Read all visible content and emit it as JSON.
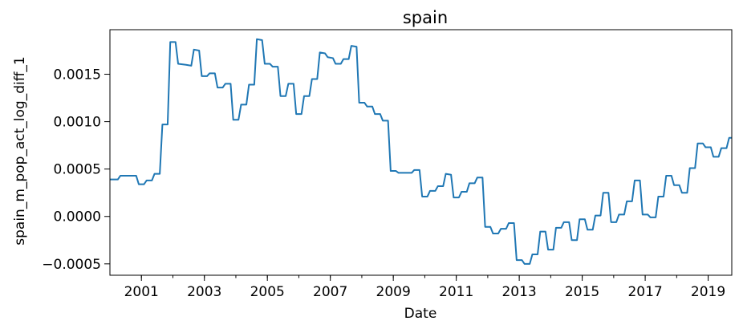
{
  "chart_data": {
    "type": "line",
    "title": "spain",
    "xlabel": "Date",
    "ylabel": "spain_m_pop_act_log_diff_1",
    "x_range": [
      "2000-01",
      "2019-10"
    ],
    "ylim": [
      -0.00062,
      0.00197
    ],
    "x_tick_labels": [
      "2001",
      "2003",
      "2005",
      "2007",
      "2009",
      "2011",
      "2013",
      "2015",
      "2017",
      "2019"
    ],
    "y_tick_labels": [
      "0.0015",
      "0.0010",
      "0.0005",
      "0.0000",
      "−0.0005"
    ],
    "y_ticks": [
      0.0015,
      0.001,
      0.0005,
      0.0,
      -0.0005
    ],
    "grid": false,
    "legend": "none",
    "series": [
      {
        "color": "#1f77b4",
        "points": [
          [
            "2000-01",
            0.00039
          ],
          [
            "2000-04",
            0.00039
          ],
          [
            "2000-05",
            0.00043
          ],
          [
            "2000-08",
            0.00043
          ],
          [
            "2000-11",
            0.00043
          ],
          [
            "2000-12",
            0.00034
          ],
          [
            "2001-02",
            0.00034
          ],
          [
            "2001-03",
            0.00038
          ],
          [
            "2001-05",
            0.00038
          ],
          [
            "2001-06",
            0.00045
          ],
          [
            "2001-08",
            0.00045
          ],
          [
            "2001-09",
            0.00097
          ],
          [
            "2001-11",
            0.00097
          ],
          [
            "2001-12",
            0.00184
          ],
          [
            "2002-02",
            0.00184
          ],
          [
            "2002-03",
            0.00161
          ],
          [
            "2002-06",
            0.0016
          ],
          [
            "2002-08",
            0.00159
          ],
          [
            "2002-09",
            0.00176
          ],
          [
            "2002-11",
            0.00175
          ],
          [
            "2002-12",
            0.00148
          ],
          [
            "2003-02",
            0.00148
          ],
          [
            "2003-03",
            0.00151
          ],
          [
            "2003-05",
            0.00151
          ],
          [
            "2003-06",
            0.00136
          ],
          [
            "2003-08",
            0.00136
          ],
          [
            "2003-09",
            0.0014
          ],
          [
            "2003-11",
            0.0014
          ],
          [
            "2003-12",
            0.00102
          ],
          [
            "2004-02",
            0.00102
          ],
          [
            "2004-03",
            0.00118
          ],
          [
            "2004-05",
            0.00118
          ],
          [
            "2004-06",
            0.00139
          ],
          [
            "2004-08",
            0.00139
          ],
          [
            "2004-09",
            0.00187
          ],
          [
            "2004-11",
            0.00186
          ],
          [
            "2004-12",
            0.00161
          ],
          [
            "2005-02",
            0.00161
          ],
          [
            "2005-03",
            0.00158
          ],
          [
            "2005-05",
            0.00158
          ],
          [
            "2005-06",
            0.00127
          ],
          [
            "2005-08",
            0.00127
          ],
          [
            "2005-09",
            0.0014
          ],
          [
            "2005-11",
            0.0014
          ],
          [
            "2005-12",
            0.00108
          ],
          [
            "2006-02",
            0.00108
          ],
          [
            "2006-03",
            0.00127
          ],
          [
            "2006-05",
            0.00127
          ],
          [
            "2006-06",
            0.00145
          ],
          [
            "2006-08",
            0.00145
          ],
          [
            "2006-09",
            0.00173
          ],
          [
            "2006-11",
            0.00172
          ],
          [
            "2006-12",
            0.00168
          ],
          [
            "2007-02",
            0.00167
          ],
          [
            "2007-03",
            0.00161
          ],
          [
            "2007-05",
            0.00161
          ],
          [
            "2007-06",
            0.00166
          ],
          [
            "2007-08",
            0.00166
          ],
          [
            "2007-09",
            0.0018
          ],
          [
            "2007-11",
            0.00179
          ],
          [
            "2007-12",
            0.0012
          ],
          [
            "2008-02",
            0.0012
          ],
          [
            "2008-03",
            0.00116
          ],
          [
            "2008-05",
            0.00116
          ],
          [
            "2008-06",
            0.00108
          ],
          [
            "2008-08",
            0.00108
          ],
          [
            "2008-09",
            0.00101
          ],
          [
            "2008-11",
            0.00101
          ],
          [
            "2008-12",
            0.00048
          ],
          [
            "2009-02",
            0.00048
          ],
          [
            "2009-03",
            0.00046
          ],
          [
            "2009-05",
            0.00046
          ],
          [
            "2009-06",
            0.00046
          ],
          [
            "2009-08",
            0.00046
          ],
          [
            "2009-09",
            0.00049
          ],
          [
            "2009-11",
            0.00049
          ],
          [
            "2009-12",
            0.00021
          ],
          [
            "2010-02",
            0.00021
          ],
          [
            "2010-03",
            0.00027
          ],
          [
            "2010-05",
            0.00027
          ],
          [
            "2010-06",
            0.00032
          ],
          [
            "2010-08",
            0.00032
          ],
          [
            "2010-09",
            0.00045
          ],
          [
            "2010-11",
            0.00044
          ],
          [
            "2010-12",
            0.0002
          ],
          [
            "2011-02",
            0.0002
          ],
          [
            "2011-03",
            0.00026
          ],
          [
            "2011-05",
            0.00026
          ],
          [
            "2011-06",
            0.00035
          ],
          [
            "2011-08",
            0.00035
          ],
          [
            "2011-09",
            0.00041
          ],
          [
            "2011-11",
            0.00041
          ],
          [
            "2011-12",
            -0.00011
          ],
          [
            "2012-02",
            -0.00011
          ],
          [
            "2012-03",
            -0.00018
          ],
          [
            "2012-05",
            -0.00018
          ],
          [
            "2012-06",
            -0.00013
          ],
          [
            "2012-08",
            -0.00013
          ],
          [
            "2012-09",
            -7e-05
          ],
          [
            "2012-11",
            -7e-05
          ],
          [
            "2012-12",
            -0.00046
          ],
          [
            "2013-02",
            -0.00046
          ],
          [
            "2013-03",
            -0.0005
          ],
          [
            "2013-05",
            -0.0005
          ],
          [
            "2013-06",
            -0.0004
          ],
          [
            "2013-08",
            -0.0004
          ],
          [
            "2013-09",
            -0.00016
          ],
          [
            "2013-11",
            -0.00016
          ],
          [
            "2013-12",
            -0.00035
          ],
          [
            "2014-02",
            -0.00035
          ],
          [
            "2014-03",
            -0.00012
          ],
          [
            "2014-05",
            -0.00012
          ],
          [
            "2014-06",
            -6e-05
          ],
          [
            "2014-08",
            -6e-05
          ],
          [
            "2014-09",
            -0.00025
          ],
          [
            "2014-11",
            -0.00025
          ],
          [
            "2014-12",
            -3e-05
          ],
          [
            "2015-02",
            -3e-05
          ],
          [
            "2015-03",
            -0.00014
          ],
          [
            "2015-05",
            -0.00014
          ],
          [
            "2015-06",
            1e-05
          ],
          [
            "2015-08",
            1e-05
          ],
          [
            "2015-09",
            0.00025
          ],
          [
            "2015-11",
            0.00025
          ],
          [
            "2015-12",
            -6e-05
          ],
          [
            "2016-02",
            -6e-05
          ],
          [
            "2016-03",
            2e-05
          ],
          [
            "2016-05",
            2e-05
          ],
          [
            "2016-06",
            0.00016
          ],
          [
            "2016-08",
            0.00016
          ],
          [
            "2016-09",
            0.00038
          ],
          [
            "2016-11",
            0.00038
          ],
          [
            "2016-12",
            2e-05
          ],
          [
            "2017-02",
            2e-05
          ],
          [
            "2017-03",
            -1e-05
          ],
          [
            "2017-05",
            -1e-05
          ],
          [
            "2017-06",
            0.00021
          ],
          [
            "2017-08",
            0.00021
          ],
          [
            "2017-09",
            0.00043
          ],
          [
            "2017-11",
            0.00043
          ],
          [
            "2017-12",
            0.00033
          ],
          [
            "2018-02",
            0.00033
          ],
          [
            "2018-03",
            0.00025
          ],
          [
            "2018-05",
            0.00025
          ],
          [
            "2018-06",
            0.00051
          ],
          [
            "2018-08",
            0.00051
          ],
          [
            "2018-09",
            0.00077
          ],
          [
            "2018-11",
            0.00077
          ],
          [
            "2018-12",
            0.00073
          ],
          [
            "2019-02",
            0.00073
          ],
          [
            "2019-03",
            0.00063
          ],
          [
            "2019-05",
            0.00063
          ],
          [
            "2019-06",
            0.00072
          ],
          [
            "2019-08",
            0.00072
          ],
          [
            "2019-09",
            0.00083
          ],
          [
            "2019-10",
            0.00083
          ]
        ]
      }
    ]
  }
}
